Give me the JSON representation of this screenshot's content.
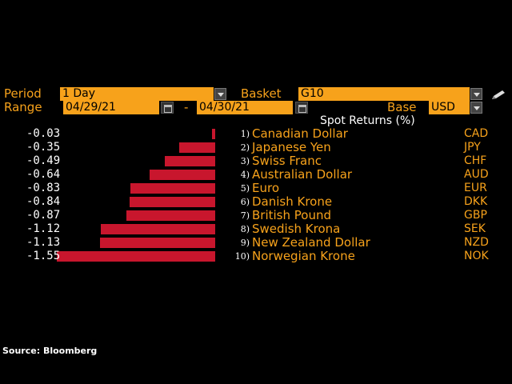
{
  "controls": {
    "period_label": "Period",
    "period_value": "1 Day",
    "basket_label": "Basket",
    "basket_value": "G10",
    "range_label": "Range",
    "range_start": "04/29/21",
    "range_sep": "-",
    "range_end": "04/30/21",
    "base_label": "Base",
    "base_value": "USD"
  },
  "chart_title": "Spot Returns (%)",
  "chart_data": {
    "type": "bar",
    "title": "Spot Returns (%)",
    "categories": [
      "Canadian Dollar",
      "Japanese Yen",
      "Swiss Franc",
      "Australian Dollar",
      "Euro",
      "Danish Krone",
      "British Pound",
      "Swedish Krona",
      "New Zealand Dollar",
      "Norwegian Krone"
    ],
    "values": [
      -0.03,
      -0.35,
      -0.49,
      -0.64,
      -0.83,
      -0.84,
      -0.87,
      -1.12,
      -1.13,
      -1.55
    ]
  },
  "rows": [
    {
      "value": "-0.03",
      "rank": "1)",
      "name": "Canadian Dollar",
      "code": "CAD"
    },
    {
      "value": "-0.35",
      "rank": "2)",
      "name": "Japanese Yen",
      "code": "JPY"
    },
    {
      "value": "-0.49",
      "rank": "3)",
      "name": "Swiss Franc",
      "code": "CHF"
    },
    {
      "value": "-0.64",
      "rank": "4)",
      "name": "Australian Dollar",
      "code": "AUD"
    },
    {
      "value": "-0.83",
      "rank": "5)",
      "name": "Euro",
      "code": "EUR"
    },
    {
      "value": "-0.84",
      "rank": "6)",
      "name": "Danish Krone",
      "code": "DKK"
    },
    {
      "value": "-0.87",
      "rank": "7)",
      "name": "British Pound",
      "code": "GBP"
    },
    {
      "value": "-1.12",
      "rank": "8)",
      "name": "Swedish Krona",
      "code": "SEK"
    },
    {
      "value": "-1.13",
      "rank": "9)",
      "name": "New Zealand Dollar",
      "code": "NZD"
    },
    {
      "value": "-1.55",
      "rank": "10)",
      "name": "Norwegian Krone",
      "code": "NOK"
    }
  ],
  "source": "Source: Bloomberg",
  "colors": {
    "accent": "#f7a21b",
    "bar": "#c8162d",
    "background": "#000000"
  },
  "icons": [
    "calendar-icon",
    "dropdown-arrow-icon",
    "pencil-icon"
  ]
}
